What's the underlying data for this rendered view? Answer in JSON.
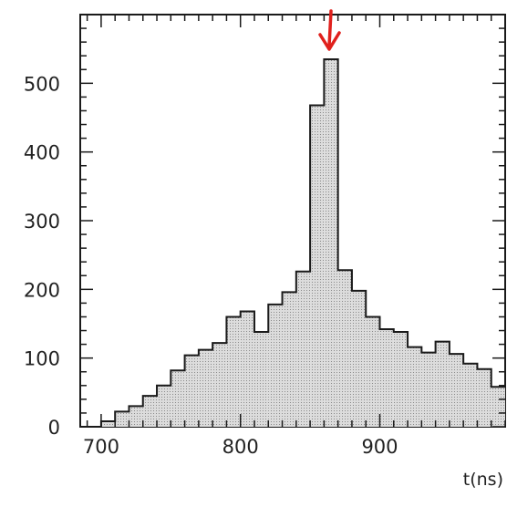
{
  "chart_data": {
    "type": "bar",
    "xlabel": "t(ns)",
    "ylabel": "",
    "xlim": [
      685,
      990
    ],
    "ylim": [
      0,
      600
    ],
    "x_ticks": [
      700,
      800,
      900
    ],
    "y_ticks": [
      0,
      100,
      200,
      300,
      400,
      500
    ],
    "grid": false,
    "legend": "none",
    "bin_width": 10,
    "bin_edges_start": [
      700,
      710,
      720,
      730,
      740,
      750,
      760,
      770,
      780,
      790,
      800,
      810,
      820,
      830,
      840,
      850,
      860,
      870,
      880,
      890,
      900,
      910,
      920,
      930,
      940,
      950,
      960,
      970,
      980
    ],
    "values": [
      8,
      22,
      30,
      45,
      60,
      82,
      104,
      112,
      122,
      160,
      168,
      138,
      178,
      196,
      226,
      468,
      535,
      228,
      198,
      160,
      142,
      138,
      116,
      108,
      124,
      106,
      92,
      84,
      58
    ],
    "annotations": [
      {
        "type": "arrow",
        "x": 865,
        "color": "#e0201c"
      }
    ],
    "colors": {
      "fill": "#c8c8c8",
      "stroke": "#1a1a1a",
      "arrow": "#e0201c"
    }
  }
}
